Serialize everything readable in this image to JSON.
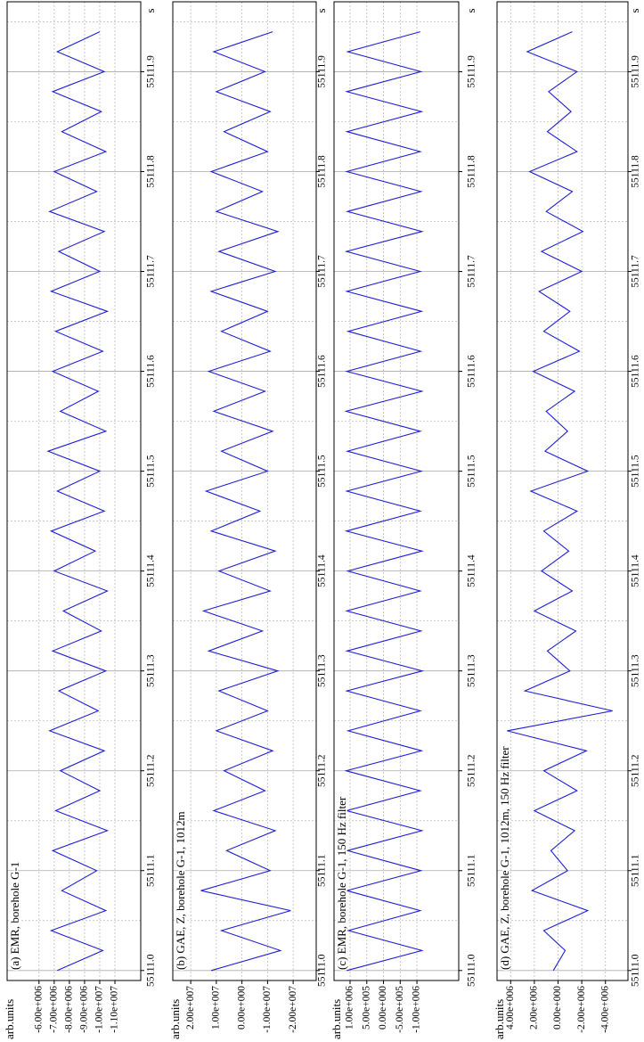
{
  "chart_data": [
    {
      "type": "line",
      "title": "(a) EMR, borehole G-1",
      "y_label": "arb.units",
      "x_label": "s",
      "x": [
        55111.0,
        55111.02,
        55111.04,
        55111.06,
        55111.08,
        55111.1,
        55111.12,
        55111.14,
        55111.16,
        55111.18,
        55111.2,
        55111.22,
        55111.24,
        55111.26,
        55111.28,
        55111.3,
        55111.32,
        55111.34,
        55111.36,
        55111.38,
        55111.4,
        55111.42,
        55111.44,
        55111.46,
        55111.48,
        55111.5,
        55111.52,
        55111.54,
        55111.56,
        55111.58,
        55111.6,
        55111.62,
        55111.64,
        55111.66,
        55111.68,
        55111.7,
        55111.72,
        55111.74,
        55111.76,
        55111.78,
        55111.8,
        55111.82,
        55111.84,
        55111.86,
        55111.88,
        55111.9,
        55111.92,
        55111.94
      ],
      "series": [
        {
          "name": "EMR",
          "color": "#1f1fd6",
          "values": [
            -7200000.0,
            -10200000.0,
            -6800000.0,
            -10400000.0,
            -7500000.0,
            -9800000.0,
            -6900000.0,
            -10500000.0,
            -7100000.0,
            -10000000.0,
            -7400000.0,
            -10300000.0,
            -6700000.0,
            -9900000.0,
            -7300000.0,
            -10400000.0,
            -6900000.0,
            -10100000.0,
            -7600000.0,
            -10500000.0,
            -7000000.0,
            -9700000.0,
            -6800000.0,
            -10300000.0,
            -7200000.0,
            -10000000.0,
            -6600000.0,
            -10400000.0,
            -7400000.0,
            -9900000.0,
            -6900000.0,
            -10200000.0,
            -7100000.0,
            -10500000.0,
            -6800000.0,
            -10000000.0,
            -7300000.0,
            -10300000.0,
            -6700000.0,
            -9800000.0,
            -7000000.0,
            -10400000.0,
            -7500000.0,
            -10100000.0,
            -6900000.0,
            -10300000.0,
            -7200000.0,
            -10000000.0
          ]
        }
      ],
      "xlim": [
        55110.99,
        55111.97
      ],
      "xticks": [
        {
          "value": 55111.0,
          "label": "55111.0"
        },
        {
          "value": 55111.1,
          "label": "55111.1"
        },
        {
          "value": 55111.2,
          "label": "55111.2"
        },
        {
          "value": 55111.3,
          "label": "55111.3"
        },
        {
          "value": 55111.4,
          "label": "55111.4"
        },
        {
          "value": 55111.5,
          "label": "55111.5"
        },
        {
          "value": 55111.6,
          "label": "55111.6"
        },
        {
          "value": 55111.7,
          "label": "55111.7"
        },
        {
          "value": 55111.8,
          "label": "55111.8"
        },
        {
          "value": 55111.9,
          "label": "55111.9"
        }
      ],
      "ylim": [
        -12700000.0,
        -3900000.0
      ],
      "yticks": [
        {
          "value": -6000000,
          "label": "-6.00e+006"
        },
        {
          "value": -7000000,
          "label": "-7.00e+006"
        },
        {
          "value": -8000000,
          "label": "-8.00e+006"
        },
        {
          "value": -9000000,
          "label": "-9.00e+006"
        },
        {
          "value": -10000000,
          "label": "-1.00e+007"
        },
        {
          "value": -11000000,
          "label": "-1.10e+007"
        }
      ],
      "grid": true
    },
    {
      "type": "line",
      "title": "(b) GAE, Z, borehole G-1, 1012m",
      "y_label": "arb.units",
      "x_label": "s",
      "x": [
        55111.0,
        55111.02,
        55111.04,
        55111.06,
        55111.08,
        55111.1,
        55111.12,
        55111.14,
        55111.16,
        55111.18,
        55111.2,
        55111.22,
        55111.24,
        55111.26,
        55111.28,
        55111.3,
        55111.32,
        55111.34,
        55111.36,
        55111.38,
        55111.4,
        55111.42,
        55111.44,
        55111.46,
        55111.48,
        55111.5,
        55111.52,
        55111.54,
        55111.56,
        55111.58,
        55111.6,
        55111.62,
        55111.64,
        55111.66,
        55111.68,
        55111.7,
        55111.72,
        55111.74,
        55111.76,
        55111.78,
        55111.8,
        55111.82,
        55111.84,
        55111.86,
        55111.88,
        55111.9,
        55111.92,
        55111.94
      ],
      "series": [
        {
          "name": "GAE",
          "color": "#1f1fd6",
          "values": [
            12000000.0,
            -15000000.0,
            8000000.0,
            -19000000.0,
            16000000.0,
            -11000000.0,
            6000000.0,
            -13000000.0,
            11000000.0,
            -9000000.0,
            7000000.0,
            -12000000.0,
            10000000.0,
            -10000000.0,
            9000000.0,
            -14000000.0,
            13000000.0,
            -8000000.0,
            15000000.0,
            -11000000.0,
            9000000.0,
            -13000000.0,
            12000000.0,
            -7000000.0,
            14000000.0,
            -10000000.0,
            8000000.0,
            -12000000.0,
            11000000.0,
            -9000000.0,
            13000000.0,
            -11000000.0,
            8000000.0,
            -10000000.0,
            12000000.0,
            -13000000.0,
            9000000.0,
            -14000000.0,
            10000000.0,
            -8000000.0,
            12000000.0,
            -10000000.0,
            7000000.0,
            -11000000.0,
            10000000.0,
            -9000000.0,
            11000000.0,
            -12000000.0
          ]
        }
      ],
      "xlim": [
        55110.99,
        55111.97
      ],
      "xticks": [
        {
          "value": 55111.0,
          "label": "55111.0"
        },
        {
          "value": 55111.1,
          "label": "55111.1"
        },
        {
          "value": 55111.2,
          "label": "55111.2"
        },
        {
          "value": 55111.3,
          "label": "55111.3"
        },
        {
          "value": 55111.4,
          "label": "55111.4"
        },
        {
          "value": 55111.5,
          "label": "55111.5"
        },
        {
          "value": 55111.6,
          "label": "55111.6"
        },
        {
          "value": 55111.7,
          "label": "55111.7"
        },
        {
          "value": 55111.8,
          "label": "55111.8"
        },
        {
          "value": 55111.9,
          "label": "55111.9"
        }
      ],
      "ylim": [
        -29000000.0,
        27000000.0
      ],
      "yticks": [
        {
          "value": 20000000,
          "label": "2.00e+007"
        },
        {
          "value": 10000000,
          "label": "1.00e+007"
        },
        {
          "value": 0,
          "label": "0.00e+000"
        },
        {
          "value": -10000000,
          "label": "-1.00e+007"
        },
        {
          "value": -20000000,
          "label": "-2.00e+007"
        }
      ],
      "grid": true
    },
    {
      "type": "line",
      "title": "(c) EMR, borehole G-1, 150 Hz filter",
      "y_label": "arb.units",
      "x_label": "s",
      "x": [
        55111.0,
        55111.02,
        55111.04,
        55111.06,
        55111.08,
        55111.1,
        55111.12,
        55111.14,
        55111.16,
        55111.18,
        55111.2,
        55111.22,
        55111.24,
        55111.26,
        55111.28,
        55111.3,
        55111.32,
        55111.34,
        55111.36,
        55111.38,
        55111.4,
        55111.42,
        55111.44,
        55111.46,
        55111.48,
        55111.5,
        55111.52,
        55111.54,
        55111.56,
        55111.58,
        55111.6,
        55111.62,
        55111.64,
        55111.66,
        55111.68,
        55111.7,
        55111.72,
        55111.74,
        55111.76,
        55111.78,
        55111.8,
        55111.82,
        55111.84,
        55111.86,
        55111.88,
        55111.9,
        55111.92,
        55111.94
      ],
      "series": [
        {
          "name": "EMR 150 Hz",
          "color": "#1f1fd6",
          "values": [
            1100000.0,
            -1150000.0,
            1050000.0,
            -1100000.0,
            1100000.0,
            -1120000.0,
            1080000.0,
            -1150000.0,
            1100000.0,
            -1100000.0,
            1120000.0,
            -1140000.0,
            1060000.0,
            -1100000.0,
            1100000.0,
            -1160000.0,
            1090000.0,
            -1120000.0,
            1100000.0,
            -1100000.0,
            1070000.0,
            -1150000.0,
            1110000.0,
            -1100000.0,
            1100000.0,
            -1130000.0,
            1080000.0,
            -1100000.0,
            1120000.0,
            -1150000.0,
            1100000.0,
            -1110000.0,
            1060000.0,
            -1140000.0,
            1100000.0,
            -1100000.0,
            1110000.0,
            -1150000.0,
            1080000.0,
            -1120000.0,
            1100000.0,
            -1100000.0,
            1090000.0,
            -1140000.0,
            1100000.0,
            -1120000.0,
            1070000.0,
            -1100000.0
          ]
        }
      ],
      "xlim": [
        55110.99,
        55111.97
      ],
      "xticks": [
        {
          "value": 55111.0,
          "label": "55111.0"
        },
        {
          "value": 55111.1,
          "label": "55111.1"
        },
        {
          "value": 55111.2,
          "label": "55111.2"
        },
        {
          "value": 55111.3,
          "label": "55111.3"
        },
        {
          "value": 55111.4,
          "label": "55111.4"
        },
        {
          "value": 55111.5,
          "label": "55111.5"
        },
        {
          "value": 55111.6,
          "label": "55111.6"
        },
        {
          "value": 55111.7,
          "label": "55111.7"
        },
        {
          "value": 55111.8,
          "label": "55111.8"
        },
        {
          "value": 55111.9,
          "label": "55111.9"
        }
      ],
      "ylim": [
        -2250000.0,
        1480000.0
      ],
      "yticks": [
        {
          "value": 1000000,
          "label": "1.00e+006"
        },
        {
          "value": 500000,
          "label": "5.00e+005"
        },
        {
          "value": 0,
          "label": "0.00e+000"
        },
        {
          "value": -500000,
          "label": "-5.00e+005"
        },
        {
          "value": -1000000,
          "label": "-1.00e+006"
        }
      ],
      "grid": true
    },
    {
      "type": "line",
      "title": "(d) GAE, Z, borehole G-1, 1012m, 150 Hz filter",
      "y_label": "arb.units",
      "x_label": "s",
      "x": [
        55111.0,
        55111.02,
        55111.04,
        55111.06,
        55111.08,
        55111.1,
        55111.12,
        55111.14,
        55111.16,
        55111.18,
        55111.2,
        55111.22,
        55111.24,
        55111.26,
        55111.28,
        55111.3,
        55111.32,
        55111.34,
        55111.36,
        55111.38,
        55111.4,
        55111.42,
        55111.44,
        55111.46,
        55111.48,
        55111.5,
        55111.52,
        55111.54,
        55111.56,
        55111.58,
        55111.6,
        55111.62,
        55111.64,
        55111.66,
        55111.68,
        55111.7,
        55111.72,
        55111.74,
        55111.76,
        55111.78,
        55111.8,
        55111.82,
        55111.84,
        55111.86,
        55111.88,
        55111.9,
        55111.92,
        55111.94
      ],
      "series": [
        {
          "name": "GAE 150 Hz",
          "color": "#1f1fd6",
          "values": [
            400000.0,
            -600000.0,
            1200000.0,
            -2500000.0,
            2200000.0,
            -800000.0,
            600000.0,
            -1400000.0,
            2000000.0,
            -1600000.0,
            1200000.0,
            -2400000.0,
            4300000.0,
            -4600000.0,
            2800000.0,
            -1000000.0,
            900000.0,
            -1500000.0,
            2000000.0,
            -1200000.0,
            1400000.0,
            -900000.0,
            1200000.0,
            -1600000.0,
            2300000.0,
            -2500000.0,
            1100000.0,
            -800000.0,
            1000000.0,
            -1400000.0,
            2100000.0,
            -1800000.0,
            1200000.0,
            -1000000.0,
            1600000.0,
            -2000000.0,
            1400000.0,
            -2100000.0,
            1000000.0,
            -1200000.0,
            2400000.0,
            -1600000.0,
            900000.0,
            -1100000.0,
            800000.0,
            -1600000.0,
            2600000.0,
            -1200000.0
          ]
        }
      ],
      "xlim": [
        55110.99,
        55111.97
      ],
      "xticks": [
        {
          "value": 55111.0,
          "label": "55111.0"
        },
        {
          "value": 55111.1,
          "label": "55111.1"
        },
        {
          "value": 55111.2,
          "label": "55111.2"
        },
        {
          "value": 55111.3,
          "label": "55111.3"
        },
        {
          "value": 55111.4,
          "label": "55111.4"
        },
        {
          "value": 55111.5,
          "label": "55111.5"
        },
        {
          "value": 55111.6,
          "label": "55111.6"
        },
        {
          "value": 55111.7,
          "label": "55111.7"
        },
        {
          "value": 55111.8,
          "label": "55111.8"
        },
        {
          "value": 55111.9,
          "label": "55111.9"
        }
      ],
      "ylim": [
        -5900000.0,
        5150000.0
      ],
      "yticks": [
        {
          "value": 4000000,
          "label": "4.00e+006"
        },
        {
          "value": 2000000,
          "label": "2.00e+006"
        },
        {
          "value": 0,
          "label": "0.00e+000"
        },
        {
          "value": -2000000,
          "label": "-2.00e+006"
        },
        {
          "value": -4000000,
          "label": "-4.00e+006"
        }
      ],
      "grid": true
    }
  ]
}
